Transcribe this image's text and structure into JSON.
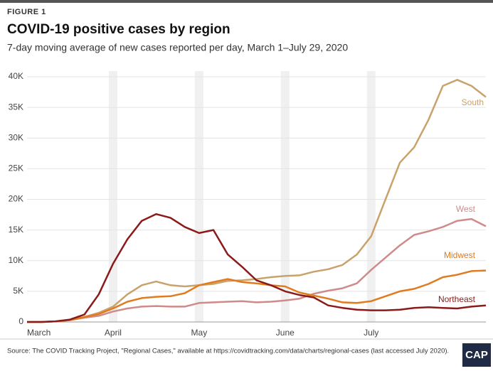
{
  "figure_label": "FIGURE 1",
  "source": "Source: The COVID Tracking Project, \"Regional Cases,\" available at https://covidtracking.com/data/charts/regional-cases (last accessed July 2020).",
  "logo": "CAP",
  "chart_data": {
    "type": "line",
    "title": "COVID-19 positive cases by region",
    "subtitle": "7-day moving average of new cases reported per day, March 1–July 29, 2020",
    "categories": [
      "March",
      null,
      null,
      null,
      null,
      null,
      "April",
      null,
      null,
      null,
      null,
      null,
      "May",
      null,
      null,
      null,
      null,
      null,
      "June",
      null,
      null,
      null,
      null,
      null,
      "July",
      null,
      null,
      null,
      null,
      null,
      null,
      null,
      null
    ],
    "series": [
      {
        "name": "South",
        "color": "#c9a26b",
        "values": [
          0,
          0,
          100,
          300,
          800,
          1500,
          2500,
          4500,
          6000,
          6600,
          6000,
          5800,
          6000,
          6200,
          6700,
          6800,
          7000,
          7300,
          7500,
          7600,
          8200,
          8600,
          9300,
          11000,
          14000,
          20000,
          26000,
          28500,
          33000,
          38500,
          39500,
          38500,
          36700
        ]
      },
      {
        "name": "West",
        "color": "#cf8a8a",
        "values": [
          0,
          0,
          100,
          300,
          700,
          1000,
          1700,
          2200,
          2500,
          2600,
          2500,
          2500,
          3100,
          3200,
          3300,
          3400,
          3200,
          3300,
          3500,
          3800,
          4600,
          5100,
          5500,
          6300,
          8500,
          10500,
          12500,
          14200,
          14800,
          15500,
          16500,
          16800,
          15600
        ]
      },
      {
        "name": "Midwest",
        "color": "#e07b1f",
        "values": [
          0,
          0,
          100,
          300,
          800,
          1300,
          2200,
          3300,
          3900,
          4100,
          4200,
          4700,
          6000,
          6500,
          7000,
          6500,
          6300,
          6000,
          5800,
          4800,
          4300,
          3800,
          3200,
          3100,
          3400,
          4200,
          5000,
          5400,
          6200,
          7300,
          7700,
          8300,
          8400
        ]
      },
      {
        "name": "Northeast",
        "color": "#8b1a1a",
        "values": [
          0,
          0,
          100,
          400,
          1200,
          4500,
          9500,
          13500,
          16500,
          17600,
          17000,
          15500,
          14500,
          15000,
          11000,
          9000,
          6800,
          6000,
          5000,
          4400,
          4000,
          2700,
          2300,
          2000,
          1900,
          1900,
          2000,
          2300,
          2400,
          2300,
          2200,
          2500,
          2700
        ]
      }
    ],
    "ylim": [
      0,
      40000
    ],
    "yticks": [
      0,
      {
        "value": 5000,
        "label": "5K"
      },
      {
        "value": 10000,
        "label": "10K"
      },
      {
        "value": 15000,
        "label": "15K"
      },
      {
        "value": 20000,
        "label": "20K"
      },
      {
        "value": 25000,
        "label": "25K"
      },
      {
        "value": 30000,
        "label": "30K"
      },
      {
        "value": 35000,
        "label": "35K"
      },
      {
        "value": 40000,
        "label": "40K"
      }
    ],
    "grid": true
  }
}
